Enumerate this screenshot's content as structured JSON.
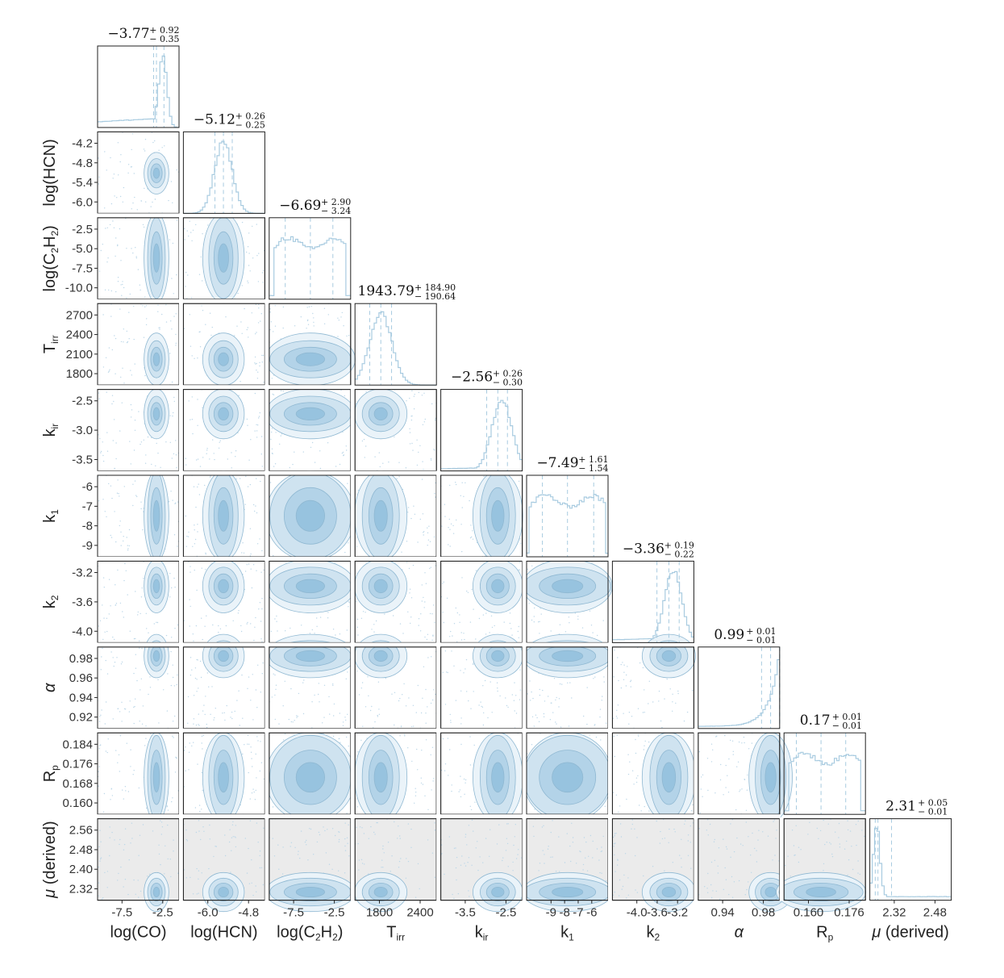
{
  "chart_data": {
    "type": "corner",
    "parameters": [
      {
        "key": "logCO",
        "label": "log(CO)",
        "latex": [
          [
            "log(CO)",
            ""
          ]
        ],
        "median": "-3.77",
        "plus": "0.92",
        "minus": "0.35",
        "range": [
          -11,
          -1
        ],
        "xticks": [
          "-7.5",
          "-2.5"
        ],
        "yticks": [],
        "yrange": null,
        "hist": {
          "type": "peaked",
          "center": -3.0,
          "width": 0.5,
          "tail": "left",
          "tail_level": 0.08,
          "quantiles": [
            -4.12,
            -3.77,
            -2.85
          ]
        }
      },
      {
        "key": "logHCN",
        "label": "log(HCN)",
        "latex": [
          [
            "log(HCN)",
            ""
          ]
        ],
        "median": "-5.12",
        "plus": "0.26",
        "minus": "0.25",
        "range": [
          -6.3,
          -3.9
        ],
        "xticks": [
          "-6.0",
          "-4.8"
        ],
        "yticks": [
          "-4.2",
          "-4.8",
          "-5.4",
          "-6.0"
        ],
        "hist": {
          "type": "gauss",
          "center": -5.12,
          "width": 0.26,
          "quantiles": [
            -5.37,
            -5.12,
            -4.86
          ]
        }
      },
      {
        "key": "logC2H2",
        "label": "log(C2H2)",
        "latex": [
          [
            "log(C",
            ""
          ],
          [
            "2",
            "sub"
          ],
          [
            "H",
            ""
          ],
          [
            "2",
            "sub"
          ],
          [
            ")",
            ""
          ]
        ],
        "median": "-6.69",
        "plus": "2.90",
        "minus": "3.24",
        "range": [
          -12,
          -1.5
        ],
        "xticks": [
          "-7.5",
          "-2.5"
        ],
        "yticks": [
          "-2.5",
          "-5.0",
          "-7.5",
          "-10.0"
        ],
        "hist": {
          "type": "flat",
          "left": -11.5,
          "right": -2.0,
          "quantiles": [
            -9.93,
            -6.69,
            -3.79
          ]
        }
      },
      {
        "key": "Tirr",
        "label": "T_irr",
        "latex": [
          [
            "T",
            ""
          ],
          [
            "irr",
            "sub"
          ]
        ],
        "median": "1943.79",
        "plus": "184.90",
        "minus": "190.64",
        "range": [
          1500,
          2900
        ],
        "xticks": [
          "1800",
          "2400"
        ],
        "yticks": [
          "2700",
          "2400",
          "2100",
          "1800"
        ],
        "hist": {
          "type": "gauss",
          "center": 1943.79,
          "width": 190,
          "quantiles": [
            1753.15,
            1943.79,
            2128.69
          ]
        }
      },
      {
        "key": "kir",
        "label": "k_ir",
        "latex": [
          [
            "k",
            ""
          ],
          [
            "ir",
            "sub"
          ]
        ],
        "median": "-2.56",
        "plus": "0.26",
        "minus": "0.30",
        "range": [
          -4.1,
          -1.9
        ],
        "xticks": [
          "-3.5",
          "-2.5"
        ],
        "yticks": [
          "-2.5",
          "-3.0",
          "-3.5"
        ],
        "hist": {
          "type": "peaked",
          "center": -2.45,
          "width": 0.27,
          "tail": "left",
          "tail_level": 0.03,
          "quantiles": [
            -2.86,
            -2.56,
            -2.3
          ]
        }
      },
      {
        "key": "k1",
        "label": "k_1",
        "latex": [
          [
            "k",
            ""
          ],
          [
            "1",
            "sub"
          ]
        ],
        "median": "-7.49",
        "plus": "1.61",
        "minus": "1.54",
        "range": [
          -10,
          -5
        ],
        "xticks": [
          "-9",
          "-8",
          "-7",
          "-6"
        ],
        "yticks": [
          "-6",
          "-7",
          "-8",
          "-9"
        ],
        "hist": {
          "type": "flat",
          "left": -9.8,
          "right": -5.2,
          "quantiles": [
            -9.03,
            -7.49,
            -5.88
          ]
        }
      },
      {
        "key": "k2",
        "label": "k_2",
        "latex": [
          [
            "k",
            ""
          ],
          [
            "2",
            "sub"
          ]
        ],
        "median": "-3.36",
        "plus": "0.19",
        "minus": "0.22",
        "range": [
          -4.4,
          -2.9
        ],
        "xticks": [
          "-4.0",
          "-3.6",
          "-3.2"
        ],
        "yticks": [
          "-3.2",
          "-3.6",
          "-4.0"
        ],
        "hist": {
          "type": "peaked",
          "center": -3.28,
          "width": 0.16,
          "tail": "left",
          "tail_level": 0.04,
          "quantiles": [
            -3.58,
            -3.36,
            -3.17
          ]
        }
      },
      {
        "key": "alpha",
        "label": "α",
        "latex": [
          [
            "α",
            "italic"
          ]
        ],
        "median": "0.99",
        "plus": "0.01",
        "minus": "0.01",
        "range": [
          0.91,
          1.0
        ],
        "xticks": [
          "0.94",
          "0.98"
        ],
        "yticks": [
          "0.98",
          "0.96",
          "0.94",
          "0.92"
        ],
        "hist": {
          "type": "edge",
          "edge": 1.0,
          "width": 0.012,
          "quantiles": [
            0.98,
            0.99,
            1.0
          ]
        }
      },
      {
        "key": "Rp",
        "label": "R_p",
        "latex": [
          [
            "R",
            ""
          ],
          [
            "p",
            "sub"
          ]
        ],
        "median": "0.17",
        "plus": "0.01",
        "minus": "0.01",
        "range": [
          0.155,
          0.188
        ],
        "xticks": [
          "0.160",
          "0.176"
        ],
        "yticks": [
          "0.184",
          "0.176",
          "0.168",
          "0.160"
        ],
        "hist": {
          "type": "flat",
          "left": 0.157,
          "right": 0.186,
          "quantiles": [
            0.16,
            0.17,
            0.18
          ]
        }
      },
      {
        "key": "mu",
        "label": "μ (derived)",
        "latex": [
          [
            "μ",
            "italic"
          ],
          [
            " (derived)",
            ""
          ]
        ],
        "median": "2.31",
        "plus": "0.05",
        "minus": "0.01",
        "range": [
          2.28,
          2.58
        ],
        "xticks": [
          "2.32",
          "2.48"
        ],
        "yticks": [
          "2.56",
          "2.48",
          "2.40",
          "2.32"
        ],
        "hist": {
          "type": "spike",
          "center": 2.305,
          "width": 0.012,
          "quantiles": [
            2.3,
            2.31,
            2.36
          ]
        }
      }
    ],
    "title_format": "median +plus −minus",
    "color": "#a8cbe0",
    "contour_fill": [
      "#eaf3f9",
      "#cfe3f0",
      "#b3d3e8",
      "#97c3df"
    ],
    "contour_line": "#8fb8d2",
    "scatter_color": "#bcd7e8",
    "derived_panel_bg": "#ebebeb",
    "grid": false,
    "legend": "none"
  }
}
